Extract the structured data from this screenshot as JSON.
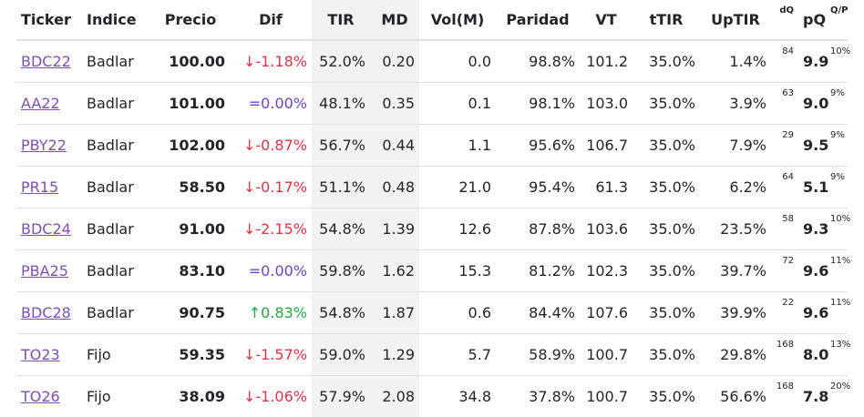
{
  "headers": [
    "Ticker",
    "Indice",
    "Precio",
    "Dif",
    "TIR",
    "MD",
    "Vol(M)",
    "Paridad",
    "VT",
    "tTIR",
    "UpTIR",
    "dQ",
    "pQ",
    "Q/P"
  ],
  "rows": [
    {
      "ticker": "BDC22",
      "indice": "Badlar",
      "precio": "100.00",
      "dif": "↓-1.18%",
      "dir": "down",
      "tir": "52.0%",
      "md": "0.20",
      "vol": "0.0",
      "paridad": "98.8%",
      "vt": "101.2",
      "ttir": "35.0%",
      "uptir": "1.4%",
      "dq": "84",
      "pq": "9.9",
      "qp": "10%"
    },
    {
      "ticker": "AA22",
      "indice": "Badlar",
      "precio": "101.00",
      "dif": "=0.00%",
      "dir": "flat",
      "tir": "48.1%",
      "md": "0.35",
      "vol": "0.1",
      "paridad": "98.1%",
      "vt": "103.0",
      "ttir": "35.0%",
      "uptir": "3.9%",
      "dq": "63",
      "pq": "9.0",
      "qp": "9%"
    },
    {
      "ticker": "PBY22",
      "indice": "Badlar",
      "precio": "102.00",
      "dif": "↓-0.87%",
      "dir": "down",
      "tir": "56.7%",
      "md": "0.44",
      "vol": "1.1",
      "paridad": "95.6%",
      "vt": "106.7",
      "ttir": "35.0%",
      "uptir": "7.9%",
      "dq": "29",
      "pq": "9.5",
      "qp": "9%"
    },
    {
      "ticker": "PR15",
      "indice": "Badlar",
      "precio": "58.50",
      "dif": "↓-0.17%",
      "dir": "down",
      "tir": "51.1%",
      "md": "0.48",
      "vol": "21.0",
      "paridad": "95.4%",
      "vt": "61.3",
      "ttir": "35.0%",
      "uptir": "6.2%",
      "dq": "64",
      "pq": "5.1",
      "qp": "9%"
    },
    {
      "ticker": "BDC24",
      "indice": "Badlar",
      "precio": "91.00",
      "dif": "↓-2.15%",
      "dir": "down",
      "tir": "54.8%",
      "md": "1.39",
      "vol": "12.6",
      "paridad": "87.8%",
      "vt": "103.6",
      "ttir": "35.0%",
      "uptir": "23.5%",
      "dq": "58",
      "pq": "9.3",
      "qp": "10%"
    },
    {
      "ticker": "PBA25",
      "indice": "Badlar",
      "precio": "83.10",
      "dif": "=0.00%",
      "dir": "flat",
      "tir": "59.8%",
      "md": "1.62",
      "vol": "15.3",
      "paridad": "81.2%",
      "vt": "102.3",
      "ttir": "35.0%",
      "uptir": "39.7%",
      "dq": "72",
      "pq": "9.6",
      "qp": "11%"
    },
    {
      "ticker": "BDC28",
      "indice": "Badlar",
      "precio": "90.75",
      "dif": "↑0.83%",
      "dir": "up",
      "tir": "54.8%",
      "md": "1.87",
      "vol": "0.6",
      "paridad": "84.4%",
      "vt": "107.6",
      "ttir": "35.0%",
      "uptir": "39.9%",
      "dq": "22",
      "pq": "9.6",
      "qp": "11%"
    },
    {
      "ticker": "TO23",
      "indice": "Fijo",
      "precio": "59.35",
      "dif": "↓-1.57%",
      "dir": "down",
      "tir": "59.0%",
      "md": "1.29",
      "vol": "5.7",
      "paridad": "58.9%",
      "vt": "100.7",
      "ttir": "35.0%",
      "uptir": "29.8%",
      "dq": "168",
      "pq": "8.0",
      "qp": "13%"
    },
    {
      "ticker": "TO26",
      "indice": "Fijo",
      "precio": "38.09",
      "dif": "↓-1.06%",
      "dir": "down",
      "tir": "57.9%",
      "md": "2.08",
      "vol": "34.8",
      "paridad": "37.8%",
      "vt": "100.7",
      "ttir": "35.0%",
      "uptir": "56.6%",
      "dq": "168",
      "pq": "7.8",
      "qp": "20%"
    }
  ]
}
